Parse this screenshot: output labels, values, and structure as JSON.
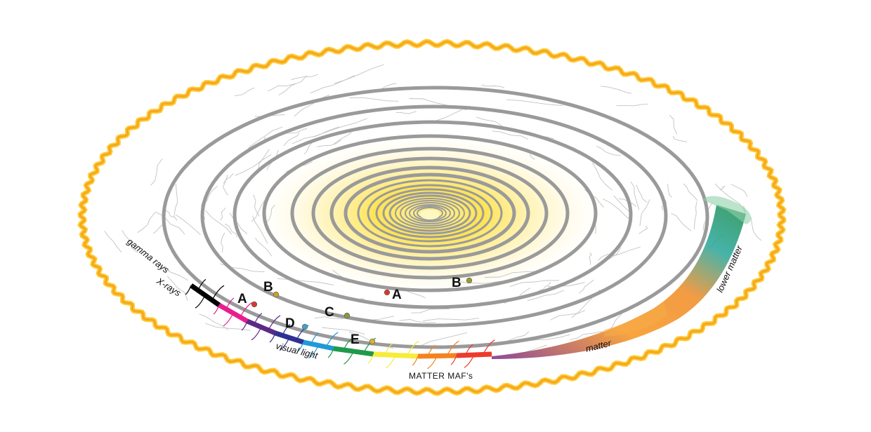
{
  "labels": {
    "gamma": "gamma rays",
    "xrays": "X-rays",
    "visual_light": "visual light",
    "matter_mafs": "MATTER MAF's",
    "matter": "matter",
    "lower_matter": "lower matter"
  },
  "points": [
    {
      "letter": "A",
      "color": "#d63a2a"
    },
    {
      "letter": "B",
      "color": "#c9a227"
    },
    {
      "letter": "C",
      "color": "#8a9a3a"
    },
    {
      "letter": "D",
      "color": "#3aa6c9"
    },
    {
      "letter": "E",
      "color": "#e0b030"
    },
    {
      "letter": "A",
      "color": "#d63a2a"
    },
    {
      "letter": "B",
      "color": "#9a9a3a"
    }
  ],
  "colors": {
    "rim": "#f5a623",
    "spiral": "#9a9a9a",
    "core": "#ffe14d",
    "spectrum": [
      "#000000",
      "#e91e8c",
      "#5b2a86",
      "#2e3192",
      "#1f9ad6",
      "#1f9a4a",
      "#f7ec3a",
      "#f58220",
      "#ee3a2a",
      "#7b2a86",
      "#f7941d",
      "#26a69a",
      "#1b8a4a"
    ]
  }
}
